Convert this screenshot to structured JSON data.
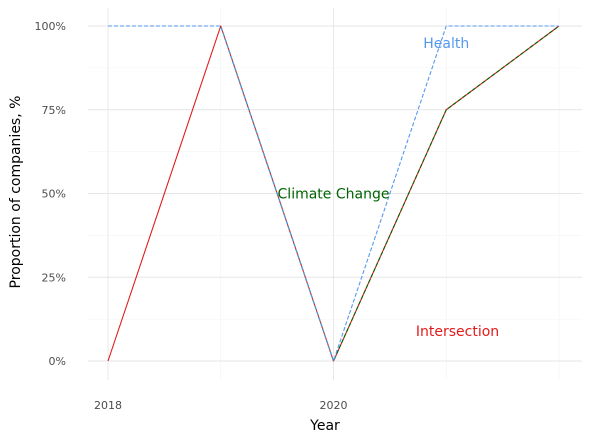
{
  "chart_data": {
    "type": "line",
    "title": "",
    "xlabel": "Year",
    "ylabel": "Proportion of companies, %",
    "xlim": [
      2018,
      2022
    ],
    "ylim": [
      0,
      1
    ],
    "x_ticks": [
      2018,
      2020
    ],
    "x_tick_labels": [
      "2018",
      "2020"
    ],
    "y_ticks": [
      0,
      0.25,
      0.5,
      0.75,
      1
    ],
    "y_tick_labels": [
      "0%",
      "25%",
      "50%",
      "75%",
      "100%"
    ],
    "grid": true,
    "legend": "none",
    "series": [
      {
        "name": "Intersection",
        "color": "#e31a1c",
        "style": "solid",
        "x": [
          2018,
          2019,
          2020,
          2021,
          2022
        ],
        "y": [
          0,
          1,
          0,
          0.75,
          1
        ],
        "label_at": [
          2021.1,
          0.09
        ]
      },
      {
        "name": "Climate Change",
        "color": "#006400",
        "style": "dashed",
        "x": [
          2018,
          2019,
          2020,
          2021,
          2022
        ],
        "y": [
          1,
          1,
          0,
          0.75,
          1
        ],
        "label_at": [
          2020.0,
          0.5
        ]
      },
      {
        "name": "Health",
        "color": "#5599ee",
        "style": "dashed",
        "x": [
          2018,
          2019,
          2020,
          2021,
          2022
        ],
        "y": [
          1,
          1,
          0,
          1,
          1
        ],
        "label_at": [
          2021.0,
          0.95
        ]
      }
    ]
  }
}
